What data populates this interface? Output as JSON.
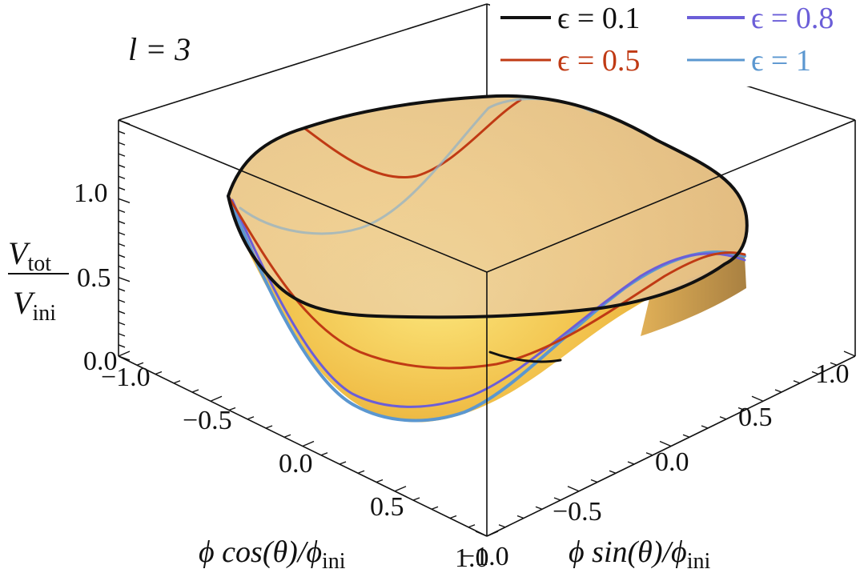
{
  "chart_data": {
    "type": "surface3d",
    "panel_label": "l = 3",
    "xlabel": {
      "main": "ϕ cos(θ)/ϕ",
      "sub": "ini"
    },
    "ylabel": {
      "main": "ϕ sin(θ)/ϕ",
      "sub": "ini"
    },
    "zlabel": {
      "num": "V",
      "num_sub": "tot",
      "den": "V",
      "den_sub": "ini"
    },
    "x_ticks": [
      "−1.0",
      "−0.5",
      "0.0",
      "0.5",
      "1.0"
    ],
    "y_ticks": [
      "−1.0",
      "−0.5",
      "0.0",
      "0.5",
      "1.0"
    ],
    "z_ticks": [
      "0.0",
      "0.5",
      "1.0"
    ],
    "xlim": [
      -1.0,
      1.0
    ],
    "ylim": [
      -1.0,
      1.0
    ],
    "zlim": [
      0.0,
      1.4
    ],
    "surface_color": "#f0b840",
    "legend": [
      {
        "label": "ϵ = 0.1",
        "epsilon": 0.1,
        "color": "#111111"
      },
      {
        "label": "ϵ = 0.8",
        "epsilon": 0.8,
        "color": "#6b5ed8"
      },
      {
        "label": "ϵ = 0.5",
        "epsilon": 0.5,
        "color": "#c03a14"
      },
      {
        "label": "ϵ = 1",
        "epsilon": 1.0,
        "color": "#5b97d0"
      }
    ]
  }
}
